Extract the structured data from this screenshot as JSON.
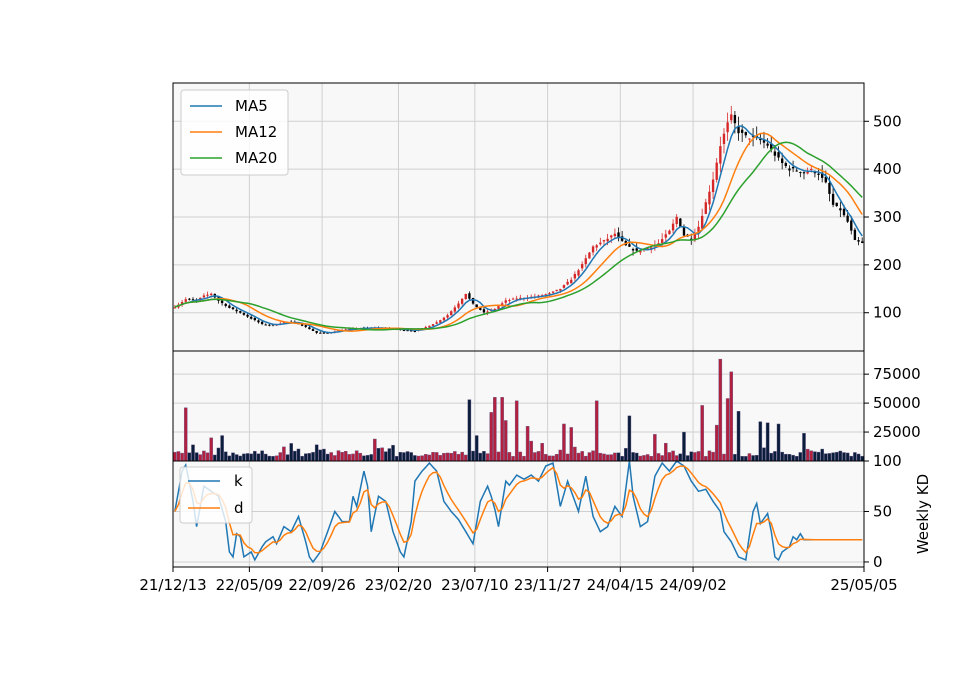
{
  "chart_data": [
    {
      "panel": "price",
      "type": "candlestick",
      "y_axis_position": "right",
      "ylim": [
        20,
        580
      ],
      "yticks": [
        "100",
        "200",
        "300",
        "400",
        "500"
      ],
      "grid": true,
      "legend_placement": "upper-left",
      "legend": [
        {
          "name": "MA5",
          "color": "#1f77b4"
        },
        {
          "name": "MA12",
          "color": "#ff7f0e"
        },
        {
          "name": "MA20",
          "color": "#2ca02c"
        }
      ],
      "colors": {
        "up": "#d62728",
        "down": "#000000",
        "background": "#f8f8f8"
      },
      "close_keypoints": [
        [
          0,
          112
        ],
        [
          3,
          128
        ],
        [
          6,
          126
        ],
        [
          8,
          135
        ],
        [
          10,
          140
        ],
        [
          12,
          125
        ],
        [
          15,
          110
        ],
        [
          18,
          100
        ],
        [
          21,
          88
        ],
        [
          24,
          76
        ],
        [
          27,
          74
        ],
        [
          30,
          80
        ],
        [
          33,
          80
        ],
        [
          36,
          70
        ],
        [
          39,
          58
        ],
        [
          42,
          58
        ],
        [
          45,
          63
        ],
        [
          48,
          66
        ],
        [
          51,
          68
        ],
        [
          54,
          68
        ],
        [
          57,
          68
        ],
        [
          60,
          66
        ],
        [
          63,
          64
        ],
        [
          66,
          62
        ],
        [
          69,
          70
        ],
        [
          72,
          80
        ],
        [
          75,
          95
        ],
        [
          78,
          120
        ],
        [
          80,
          140
        ],
        [
          82,
          118
        ],
        [
          85,
          100
        ],
        [
          88,
          108
        ],
        [
          91,
          125
        ],
        [
          94,
          130
        ],
        [
          97,
          132
        ],
        [
          100,
          135
        ],
        [
          103,
          140
        ],
        [
          106,
          150
        ],
        [
          109,
          170
        ],
        [
          112,
          200
        ],
        [
          115,
          238
        ],
        [
          118,
          250
        ],
        [
          121,
          265
        ],
        [
          124,
          240
        ],
        [
          127,
          228
        ],
        [
          130,
          235
        ],
        [
          133,
          245
        ],
        [
          136,
          270
        ],
        [
          138,
          300
        ],
        [
          140,
          262
        ],
        [
          142,
          255
        ],
        [
          144,
          280
        ],
        [
          146,
          330
        ],
        [
          148,
          380
        ],
        [
          150,
          450
        ],
        [
          152,
          495
        ],
        [
          153,
          510
        ],
        [
          155,
          478
        ],
        [
          157,
          468
        ],
        [
          159,
          465
        ],
        [
          161,
          460
        ],
        [
          163,
          450
        ],
        [
          165,
          430
        ],
        [
          167,
          412
        ],
        [
          169,
          400
        ],
        [
          171,
          398
        ],
        [
          173,
          392
        ],
        [
          175,
          398
        ],
        [
          177,
          390
        ],
        [
          179,
          370
        ],
        [
          181,
          325
        ],
        [
          183,
          315
        ],
        [
          185,
          290
        ],
        [
          187,
          250
        ],
        [
          189,
          245
        ],
        [
          190,
          258
        ]
      ],
      "series": [
        {
          "name": "MA5",
          "window": 5,
          "color": "#1f77b4"
        },
        {
          "name": "MA12",
          "window": 12,
          "color": "#ff7f0e"
        },
        {
          "name": "MA20",
          "window": 20,
          "color": "#2ca02c"
        }
      ]
    },
    {
      "panel": "volume",
      "type": "bar",
      "y_axis_position": "right",
      "ylim": [
        0,
        95000
      ],
      "yticks": [
        "25000",
        "50000",
        "75000"
      ],
      "grid": true,
      "colors": {
        "up": "#b22040",
        "down": "#0a1e3c",
        "bar_edge": "#6b5b8a"
      },
      "peaks": [
        [
          3,
          46000
        ],
        [
          10,
          20000
        ],
        [
          13,
          22000
        ],
        [
          39,
          14000
        ],
        [
          55,
          19000
        ],
        [
          81,
          53000
        ],
        [
          83,
          22000
        ],
        [
          87,
          42000
        ],
        [
          88,
          55000
        ],
        [
          90,
          55000
        ],
        [
          91,
          35000
        ],
        [
          94,
          52000
        ],
        [
          97,
          30000
        ],
        [
          107,
          32000
        ],
        [
          109,
          29000
        ],
        [
          116,
          52000
        ],
        [
          125,
          39000
        ],
        [
          132,
          23000
        ],
        [
          140,
          25000
        ],
        [
          145,
          48000
        ],
        [
          149,
          31000
        ],
        [
          150,
          88000
        ],
        [
          152,
          54000
        ],
        [
          153,
          77000
        ],
        [
          155,
          43000
        ],
        [
          161,
          34000
        ],
        [
          163,
          33000
        ],
        [
          166,
          32000
        ],
        [
          173,
          24000
        ]
      ],
      "base": 4000
    },
    {
      "panel": "kd",
      "type": "line",
      "y_axis_position": "right",
      "ylabel": "Weekly KD",
      "ylim": [
        -5,
        100
      ],
      "yticks": [
        "0",
        "50",
        "100"
      ],
      "grid": true,
      "legend_placement": "upper-left",
      "legend": [
        {
          "name": "k",
          "color": "#1f77b4"
        },
        {
          "name": "d",
          "color": "#ff7f0e"
        }
      ],
      "k_keypoints": [
        [
          0,
          50
        ],
        [
          2,
          90
        ],
        [
          3,
          96
        ],
        [
          5,
          60
        ],
        [
          6,
          35
        ],
        [
          8,
          75
        ],
        [
          10,
          70
        ],
        [
          12,
          65
        ],
        [
          14,
          40
        ],
        [
          15,
          10
        ],
        [
          16,
          5
        ],
        [
          17,
          28
        ],
        [
          18,
          25
        ],
        [
          19,
          5
        ],
        [
          21,
          10
        ],
        [
          22,
          2
        ],
        [
          24,
          15
        ],
        [
          25,
          20
        ],
        [
          27,
          25
        ],
        [
          28,
          18
        ],
        [
          30,
          35
        ],
        [
          32,
          30
        ],
        [
          34,
          45
        ],
        [
          36,
          20
        ],
        [
          37,
          5
        ],
        [
          38,
          0
        ],
        [
          40,
          10
        ],
        [
          42,
          30
        ],
        [
          44,
          50
        ],
        [
          46,
          40
        ],
        [
          48,
          40
        ],
        [
          49,
          65
        ],
        [
          50,
          55
        ],
        [
          52,
          90
        ],
        [
          53,
          75
        ],
        [
          54,
          30
        ],
        [
          56,
          65
        ],
        [
          58,
          60
        ],
        [
          60,
          30
        ],
        [
          62,
          10
        ],
        [
          63,
          5
        ],
        [
          65,
          40
        ],
        [
          66,
          80
        ],
        [
          68,
          90
        ],
        [
          70,
          98
        ],
        [
          72,
          90
        ],
        [
          74,
          60
        ],
        [
          76,
          50
        ],
        [
          78,
          42
        ],
        [
          80,
          30
        ],
        [
          82,
          18
        ],
        [
          84,
          60
        ],
        [
          86,
          75
        ],
        [
          87,
          65
        ],
        [
          88,
          52
        ],
        [
          89,
          35
        ],
        [
          91,
          80
        ],
        [
          92,
          76
        ],
        [
          94,
          86
        ],
        [
          96,
          82
        ],
        [
          98,
          86
        ],
        [
          100,
          80
        ],
        [
          102,
          95
        ],
        [
          104,
          98
        ],
        [
          106,
          55
        ],
        [
          108,
          80
        ],
        [
          110,
          60
        ],
        [
          111,
          50
        ],
        [
          113,
          85
        ],
        [
          115,
          45
        ],
        [
          117,
          30
        ],
        [
          119,
          35
        ],
        [
          121,
          55
        ],
        [
          123,
          45
        ],
        [
          125,
          100
        ],
        [
          126,
          65
        ],
        [
          128,
          35
        ],
        [
          130,
          40
        ],
        [
          132,
          85
        ],
        [
          134,
          98
        ],
        [
          136,
          90
        ],
        [
          138,
          100
        ],
        [
          140,
          95
        ],
        [
          142,
          80
        ],
        [
          144,
          70
        ],
        [
          146,
          72
        ],
        [
          148,
          60
        ],
        [
          150,
          50
        ],
        [
          151,
          30
        ],
        [
          153,
          20
        ],
        [
          155,
          5
        ],
        [
          157,
          2
        ],
        [
          159,
          50
        ],
        [
          160,
          58
        ],
        [
          161,
          38
        ],
        [
          163,
          48
        ],
        [
          164,
          30
        ],
        [
          165,
          5
        ],
        [
          166,
          2
        ],
        [
          167,
          10
        ],
        [
          169,
          15
        ],
        [
          170,
          25
        ],
        [
          171,
          22
        ],
        [
          172,
          28
        ],
        [
          173,
          22
        ]
      ],
      "d_smoothing": 0.35
    }
  ],
  "x_axis": {
    "n_periods": 190,
    "ticks": [
      {
        "label": "21/12/13",
        "index": 0
      },
      {
        "label": "22/05/09",
        "index": 21
      },
      {
        "label": "22/09/26",
        "index": 41
      },
      {
        "label": "23/02/20",
        "index": 62
      },
      {
        "label": "23/07/10",
        "index": 83
      },
      {
        "label": "23/11/27",
        "index": 103
      },
      {
        "label": "24/04/15",
        "index": 123
      },
      {
        "label": "24/09/02",
        "index": 143
      },
      {
        "label": "25/05/05",
        "index": 190
      }
    ]
  }
}
